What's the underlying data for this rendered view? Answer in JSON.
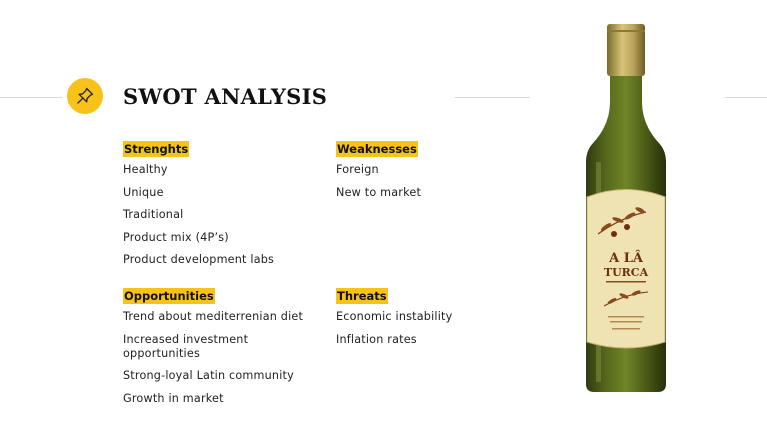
{
  "title": "SWOT ANALYSIS",
  "accent_color": "#f7c31a",
  "icon": "pushpin-icon",
  "strengths": {
    "heading": "Strenghts",
    "items": [
      "Healthy",
      "Unique",
      "Traditional",
      "Product mix (4P’s)",
      "Product development labs"
    ]
  },
  "weaknesses": {
    "heading": "Weaknesses",
    "items": [
      "Foreign",
      "New to market"
    ]
  },
  "opportunities": {
    "heading": "Opportunities",
    "items": [
      "Trend about mediterrenian diet",
      "Increased investment opportunities",
      "Strong-loyal Latin community",
      "Growth in market"
    ]
  },
  "threats": {
    "heading": "Threats",
    "items": [
      "Economic instability",
      "Inflation rates"
    ]
  },
  "bottle_label": {
    "brand_line1": "A LÂ",
    "brand_line2": "TURCA"
  }
}
